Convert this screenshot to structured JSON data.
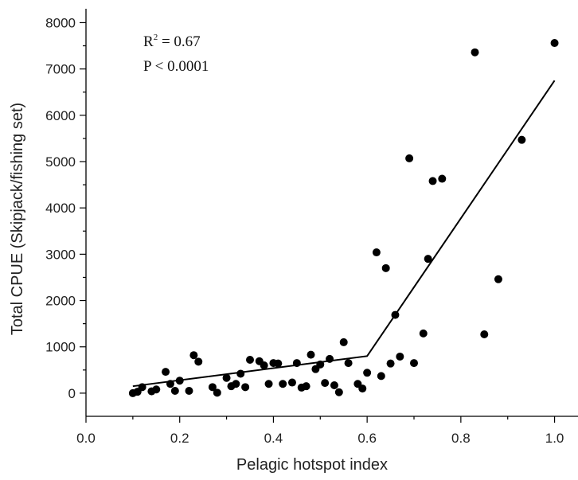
{
  "chart_data": {
    "type": "scatter",
    "title": "",
    "xlabel": "Pelagic hotspot index",
    "ylabel": "Total CPUE (Skipjack/fishing set)",
    "xlim": [
      0.0,
      1.05
    ],
    "ylim": [
      -500,
      8300
    ],
    "x_ticks": [
      0.0,
      0.2,
      0.4,
      0.6,
      0.8,
      1.0
    ],
    "x_tick_labels": [
      "0.0",
      "0.2",
      "0.4",
      "0.6",
      "0.8",
      "1.0"
    ],
    "y_ticks": [
      0,
      1000,
      2000,
      3000,
      4000,
      5000,
      6000,
      7000,
      8000
    ],
    "y_tick_labels": [
      "0",
      "1000",
      "2000",
      "3000",
      "4000",
      "5000",
      "6000",
      "7000",
      "8000"
    ],
    "grid": false,
    "annotations": {
      "r2_prefix": "R",
      "r2_sup": "2",
      "r2_suffix": " = 0.67",
      "p_text": "P  < 0.0001"
    },
    "points": [
      [
        0.1,
        0
      ],
      [
        0.11,
        30
      ],
      [
        0.12,
        130
      ],
      [
        0.14,
        40
      ],
      [
        0.15,
        80
      ],
      [
        0.17,
        460
      ],
      [
        0.18,
        200
      ],
      [
        0.19,
        50
      ],
      [
        0.2,
        270
      ],
      [
        0.22,
        50
      ],
      [
        0.23,
        820
      ],
      [
        0.24,
        680
      ],
      [
        0.27,
        130
      ],
      [
        0.28,
        10
      ],
      [
        0.3,
        330
      ],
      [
        0.31,
        150
      ],
      [
        0.32,
        200
      ],
      [
        0.33,
        420
      ],
      [
        0.34,
        130
      ],
      [
        0.35,
        720
      ],
      [
        0.37,
        690
      ],
      [
        0.38,
        600
      ],
      [
        0.39,
        200
      ],
      [
        0.4,
        650
      ],
      [
        0.41,
        640
      ],
      [
        0.42,
        200
      ],
      [
        0.44,
        230
      ],
      [
        0.45,
        650
      ],
      [
        0.46,
        120
      ],
      [
        0.47,
        150
      ],
      [
        0.48,
        830
      ],
      [
        0.49,
        520
      ],
      [
        0.5,
        620
      ],
      [
        0.51,
        220
      ],
      [
        0.52,
        740
      ],
      [
        0.53,
        170
      ],
      [
        0.54,
        20
      ],
      [
        0.55,
        1100
      ],
      [
        0.56,
        650
      ],
      [
        0.58,
        200
      ],
      [
        0.59,
        100
      ],
      [
        0.6,
        440
      ],
      [
        0.62,
        3040
      ],
      [
        0.63,
        370
      ],
      [
        0.64,
        2700
      ],
      [
        0.65,
        640
      ],
      [
        0.66,
        1690
      ],
      [
        0.67,
        790
      ],
      [
        0.69,
        5070
      ],
      [
        0.7,
        650
      ],
      [
        0.72,
        1290
      ],
      [
        0.73,
        2900
      ],
      [
        0.74,
        4580
      ],
      [
        0.76,
        4630
      ],
      [
        0.83,
        7360
      ],
      [
        0.85,
        1270
      ],
      [
        0.88,
        2460
      ],
      [
        0.93,
        5470
      ],
      [
        1.0,
        7560
      ]
    ],
    "fit_line": [
      [
        0.1,
        150
      ],
      [
        0.6,
        800
      ],
      [
        1.0,
        6750
      ]
    ]
  }
}
